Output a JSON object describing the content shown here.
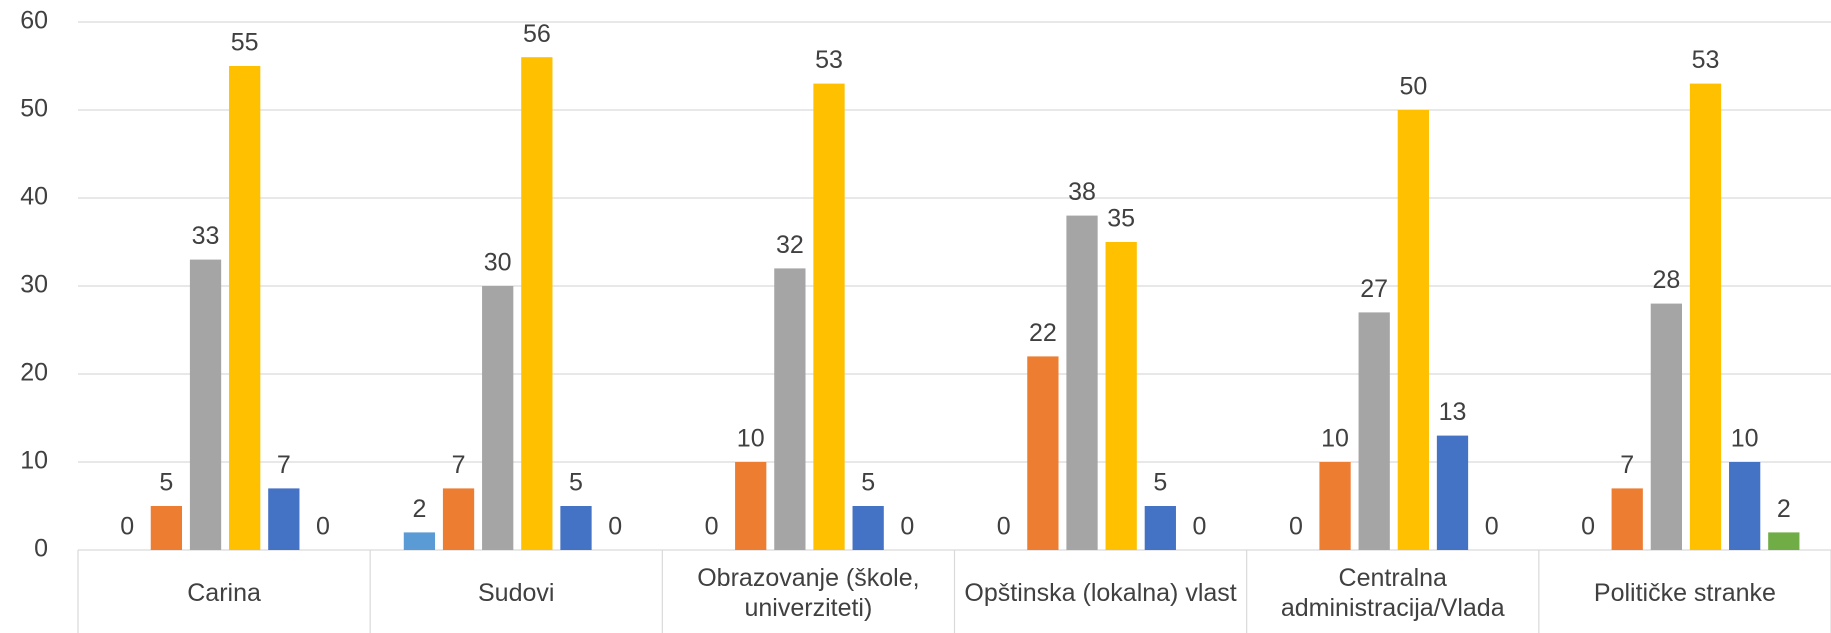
{
  "chart_data": {
    "type": "bar",
    "categories": [
      "Carina",
      "Sudovi",
      "Obrazovanje (škole, univerziteti)",
      "Opštinska (lokalna) vlast",
      "Centralna administracija/Vlada",
      "Političke stranke"
    ],
    "series": [
      {
        "color": "#5b9bd5",
        "values": [
          0,
          2,
          0,
          0,
          0,
          0
        ]
      },
      {
        "color": "#ed7d31",
        "values": [
          5,
          7,
          10,
          22,
          10,
          7
        ]
      },
      {
        "color": "#a5a5a5",
        "values": [
          33,
          30,
          32,
          38,
          27,
          28
        ]
      },
      {
        "color": "#ffc000",
        "values": [
          55,
          56,
          53,
          35,
          50,
          53
        ]
      },
      {
        "color": "#4472c4",
        "values": [
          7,
          5,
          5,
          5,
          13,
          10
        ]
      },
      {
        "color": "#70ad47",
        "values": [
          0,
          0,
          0,
          0,
          0,
          2
        ]
      }
    ],
    "ylim": [
      0,
      60
    ],
    "yticks": [
      0,
      10,
      20,
      30,
      40,
      50,
      60
    ],
    "grid": true
  }
}
